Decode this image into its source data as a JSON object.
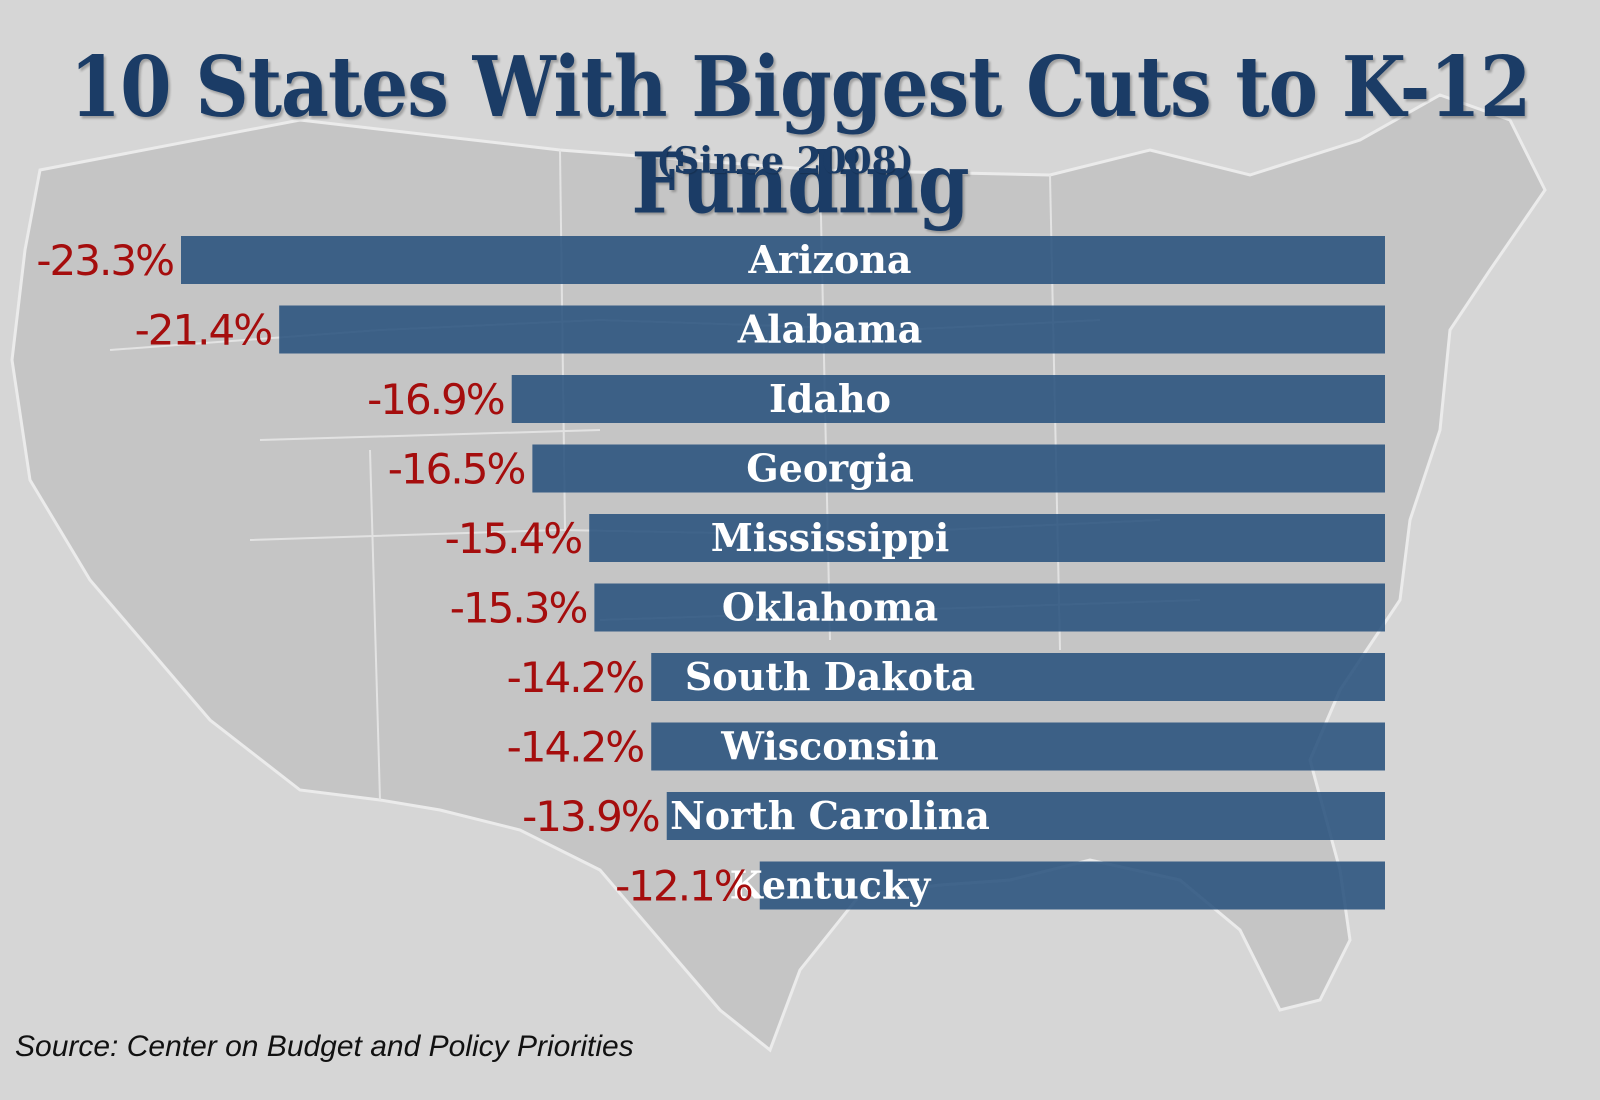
{
  "title": "10 States With Biggest Cuts to K-12 Funding",
  "subtitle": "(Since 2008)",
  "source": "Source: Center on Budget and Policy Priorities",
  "colors": {
    "bar": "#234d7a",
    "value_text": "#a50d0d",
    "label_text": "#ffffff",
    "title": "#1b3c66",
    "background": "#d6d6d6"
  },
  "chart_data": {
    "type": "bar",
    "orientation": "horizontal",
    "categories": [
      "Arizona",
      "Alabama",
      "Idaho",
      "Georgia",
      "Mississippi",
      "Oklahoma",
      "South Dakota",
      "Wisconsin",
      "North Carolina",
      "Kentucky"
    ],
    "values": [
      -23.3,
      -21.4,
      -16.9,
      -16.5,
      -15.4,
      -15.3,
      -14.2,
      -14.2,
      -13.9,
      -12.1
    ],
    "value_labels": [
      "-23.3%",
      "-21.4%",
      "-16.9%",
      "-16.5%",
      "-15.4%",
      "-15.3%",
      "-14.2%",
      "-14.2%",
      "-13.9%",
      "-12.1%"
    ],
    "title": "10 States With Biggest Cuts to K-12 Funding",
    "subtitle": "(Since 2008)",
    "xlabel": "",
    "ylabel": "",
    "grid": false,
    "legend": "none"
  }
}
